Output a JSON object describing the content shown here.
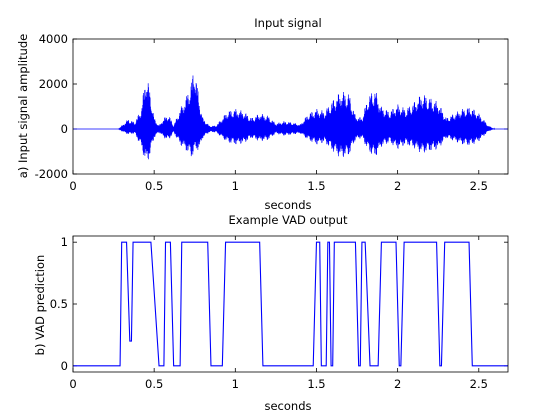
{
  "chart_data": [
    {
      "type": "line",
      "title": "Input signal",
      "xlabel": "seconds",
      "ylabel": "a) Input signal amplitude",
      "xlim": [
        0,
        2.68
      ],
      "ylim": [
        -2000,
        4000
      ],
      "xticks": [
        0,
        0.5,
        1,
        1.5,
        2,
        2.5
      ],
      "xtick_labels": [
        "0",
        "0.5",
        "1",
        "1.5",
        "2",
        "2.5"
      ],
      "yticks": [
        -2000,
        0,
        2000,
        4000
      ],
      "ytick_labels": [
        "-2000",
        "0",
        "2000",
        "4000"
      ],
      "grid": false,
      "color": "#0000ff",
      "series": [
        {
          "envelope": {
            "t": [
              0.0,
              0.28,
              0.3,
              0.34,
              0.38,
              0.42,
              0.45,
              0.47,
              0.5,
              0.53,
              0.56,
              0.59,
              0.62,
              0.66,
              0.7,
              0.73,
              0.75,
              0.78,
              0.8,
              0.84,
              0.88,
              0.92,
              0.95,
              1.0,
              1.05,
              1.1,
              1.15,
              1.2,
              1.25,
              1.3,
              1.35,
              1.4,
              1.45,
              1.5,
              1.55,
              1.6,
              1.65,
              1.7,
              1.74,
              1.78,
              1.82,
              1.86,
              1.9,
              1.95,
              2.0,
              2.05,
              2.1,
              2.15,
              2.2,
              2.25,
              2.3,
              2.35,
              2.4,
              2.45,
              2.5,
              2.56,
              2.6,
              2.68
            ],
            "upper": [
              0,
              0,
              150,
              450,
              300,
              900,
              2500,
              1900,
              500,
              150,
              500,
              650,
              150,
              900,
              1500,
              2200,
              2900,
              1200,
              500,
              150,
              150,
              500,
              800,
              900,
              800,
              500,
              700,
              600,
              250,
              350,
              300,
              200,
              700,
              900,
              800,
              1300,
              1700,
              1600,
              600,
              500,
              1500,
              1800,
              1000,
              800,
              1100,
              900,
              1200,
              1600,
              1400,
              1200,
              500,
              700,
              900,
              1000,
              700,
              150,
              0,
              0
            ],
            "lower": [
              0,
              0,
              -100,
              -250,
              -200,
              -800,
              -1600,
              -1300,
              -400,
              -150,
              -400,
              -500,
              -150,
              -700,
              -1000,
              -1300,
              -1000,
              -900,
              -400,
              -150,
              -150,
              -400,
              -600,
              -700,
              -650,
              -400,
              -550,
              -500,
              -200,
              -300,
              -250,
              -200,
              -500,
              -700,
              -600,
              -1000,
              -1300,
              -1200,
              -500,
              -400,
              -1000,
              -1300,
              -800,
              -600,
              -900,
              -700,
              -850,
              -1100,
              -1000,
              -900,
              -400,
              -550,
              -700,
              -750,
              -550,
              -100,
              0,
              0
            ]
          }
        }
      ]
    },
    {
      "type": "line",
      "title": "Example VAD output",
      "xlabel": "seconds",
      "ylabel": "b) VAD prediction",
      "xlim": [
        0,
        2.68
      ],
      "ylim": [
        -0.05,
        1.05
      ],
      "xticks": [
        0,
        0.5,
        1,
        1.5,
        2,
        2.5
      ],
      "xtick_labels": [
        "0",
        "0.5",
        "1",
        "1.5",
        "2",
        "2.5"
      ],
      "yticks": [
        0,
        0.5,
        1
      ],
      "ytick_labels": [
        "0",
        "0.5",
        "1"
      ],
      "grid": false,
      "color": "#0000ff",
      "series": [
        {
          "x": [
            0,
            0.29,
            0.3,
            0.33,
            0.35,
            0.36,
            0.37,
            0.48,
            0.53,
            0.56,
            0.57,
            0.6,
            0.62,
            0.66,
            0.67,
            0.7,
            0.71,
            0.83,
            0.85,
            0.92,
            0.94,
            1.15,
            1.17,
            1.48,
            1.5,
            1.52,
            1.53,
            1.56,
            1.57,
            1.58,
            1.59,
            1.6,
            1.61,
            1.64,
            1.66,
            1.74,
            1.76,
            1.77,
            1.78,
            1.8,
            1.83,
            1.88,
            1.9,
            1.99,
            2.01,
            2.02,
            2.04,
            2.24,
            2.26,
            2.27,
            2.29,
            2.3,
            2.31,
            2.44,
            2.46,
            2.68
          ],
          "y": [
            0,
            0,
            1,
            1,
            0.2,
            0.2,
            1,
            1,
            0,
            0,
            1,
            1,
            0,
            0,
            1,
            1,
            1,
            1,
            0,
            0,
            1,
            1,
            0,
            0,
            1,
            1,
            0,
            0,
            1,
            1,
            0,
            0,
            1,
            1,
            1,
            1,
            0,
            0,
            1,
            1,
            0,
            0,
            1,
            1,
            0,
            0,
            1,
            1,
            0,
            0,
            1,
            1,
            1,
            1,
            0,
            0
          ]
        }
      ]
    }
  ]
}
